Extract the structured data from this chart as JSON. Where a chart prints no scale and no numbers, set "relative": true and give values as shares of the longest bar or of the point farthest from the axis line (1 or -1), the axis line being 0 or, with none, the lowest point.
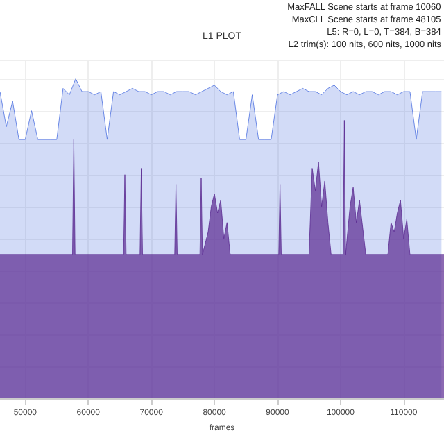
{
  "chart_data": {
    "type": "area",
    "title": "L1 PLOT",
    "xlabel": "frames",
    "relative": true,
    "grid": true,
    "xlim": [
      46000,
      116400
    ],
    "xticks": [
      50000,
      60000,
      70000,
      80000,
      90000,
      100000,
      110000
    ],
    "annotations": [
      "MaxFALL Scene starts at frame 10060",
      "MaxCLL Scene starts at frame 48105",
      "L5: R=0, L=0, T=384, B=384",
      "L2 trim(s): 100 nits, 600 nits, 1000 nits"
    ],
    "series": [
      {
        "color": "#4a6ee0",
        "x": [
          46000,
          47000,
          48000,
          49000,
          50000,
          51000,
          52000,
          53000,
          54000,
          55000,
          56000,
          57000,
          58000,
          59000,
          60000,
          61000,
          62000,
          63000,
          64000,
          65000,
          66000,
          67000,
          68000,
          69000,
          70000,
          71000,
          72000,
          73000,
          74000,
          75000,
          76000,
          77000,
          78000,
          79000,
          80000,
          81000,
          82000,
          83000,
          84000,
          85000,
          86000,
          87000,
          88000,
          89000,
          90000,
          91000,
          92000,
          93000,
          94000,
          95000,
          96000,
          97000,
          98000,
          99000,
          100000,
          101000,
          102000,
          103000,
          104000,
          105000,
          106000,
          107000,
          108000,
          109000,
          110000,
          111000,
          112000,
          113000,
          114000,
          115000,
          116000
        ],
        "values": [
          0.96,
          0.85,
          0.93,
          0.81,
          0.81,
          0.9,
          0.81,
          0.81,
          0.81,
          0.81,
          0.97,
          0.95,
          1,
          0.96,
          0.96,
          0.95,
          0.96,
          0.81,
          0.96,
          0.95,
          0.96,
          0.97,
          0.96,
          0.96,
          0.95,
          0.96,
          0.96,
          0.95,
          0.96,
          0.96,
          0.96,
          0.95,
          0.96,
          0.97,
          0.98,
          0.96,
          0.95,
          0.96,
          0.81,
          0.81,
          0.95,
          0.81,
          0.81,
          0.81,
          0.95,
          0.96,
          0.95,
          0.96,
          0.97,
          0.96,
          0.96,
          0.95,
          0.97,
          0.98,
          0.96,
          0.95,
          0.96,
          0.95,
          0.96,
          0.96,
          0.95,
          0.96,
          0.96,
          0.95,
          0.96,
          0.96,
          0.81,
          0.96,
          0.96,
          0.96,
          0.96
        ]
      },
      {
        "color": "#5b2a91",
        "x": [
          46000,
          57500,
          57700,
          57900,
          65600,
          65800,
          66000,
          68200,
          68400,
          68600,
          73700,
          73900,
          74100,
          77700,
          77900,
          78100,
          79000,
          79500,
          80000,
          80500,
          81000,
          81500,
          82000,
          82500,
          90200,
          90400,
          90600,
          95000,
          95500,
          96000,
          96500,
          97000,
          97500,
          98000,
          98500,
          100400,
          100600,
          100800,
          101500,
          102000,
          102500,
          103000,
          104000,
          107500,
          108000,
          108500,
          109000,
          109500,
          110000,
          110500,
          111000,
          116400
        ],
        "values": [
          0.45,
          0.45,
          0.81,
          0.45,
          0.45,
          0.7,
          0.45,
          0.45,
          0.72,
          0.45,
          0.45,
          0.67,
          0.45,
          0.45,
          0.69,
          0.45,
          0.52,
          0.6,
          0.64,
          0.58,
          0.62,
          0.5,
          0.55,
          0.45,
          0.45,
          0.67,
          0.45,
          0.45,
          0.72,
          0.65,
          0.74,
          0.6,
          0.68,
          0.55,
          0.45,
          0.45,
          0.87,
          0.45,
          0.6,
          0.66,
          0.55,
          0.62,
          0.45,
          0.45,
          0.55,
          0.52,
          0.58,
          0.62,
          0.5,
          0.56,
          0.45,
          0.45
        ]
      }
    ]
  }
}
